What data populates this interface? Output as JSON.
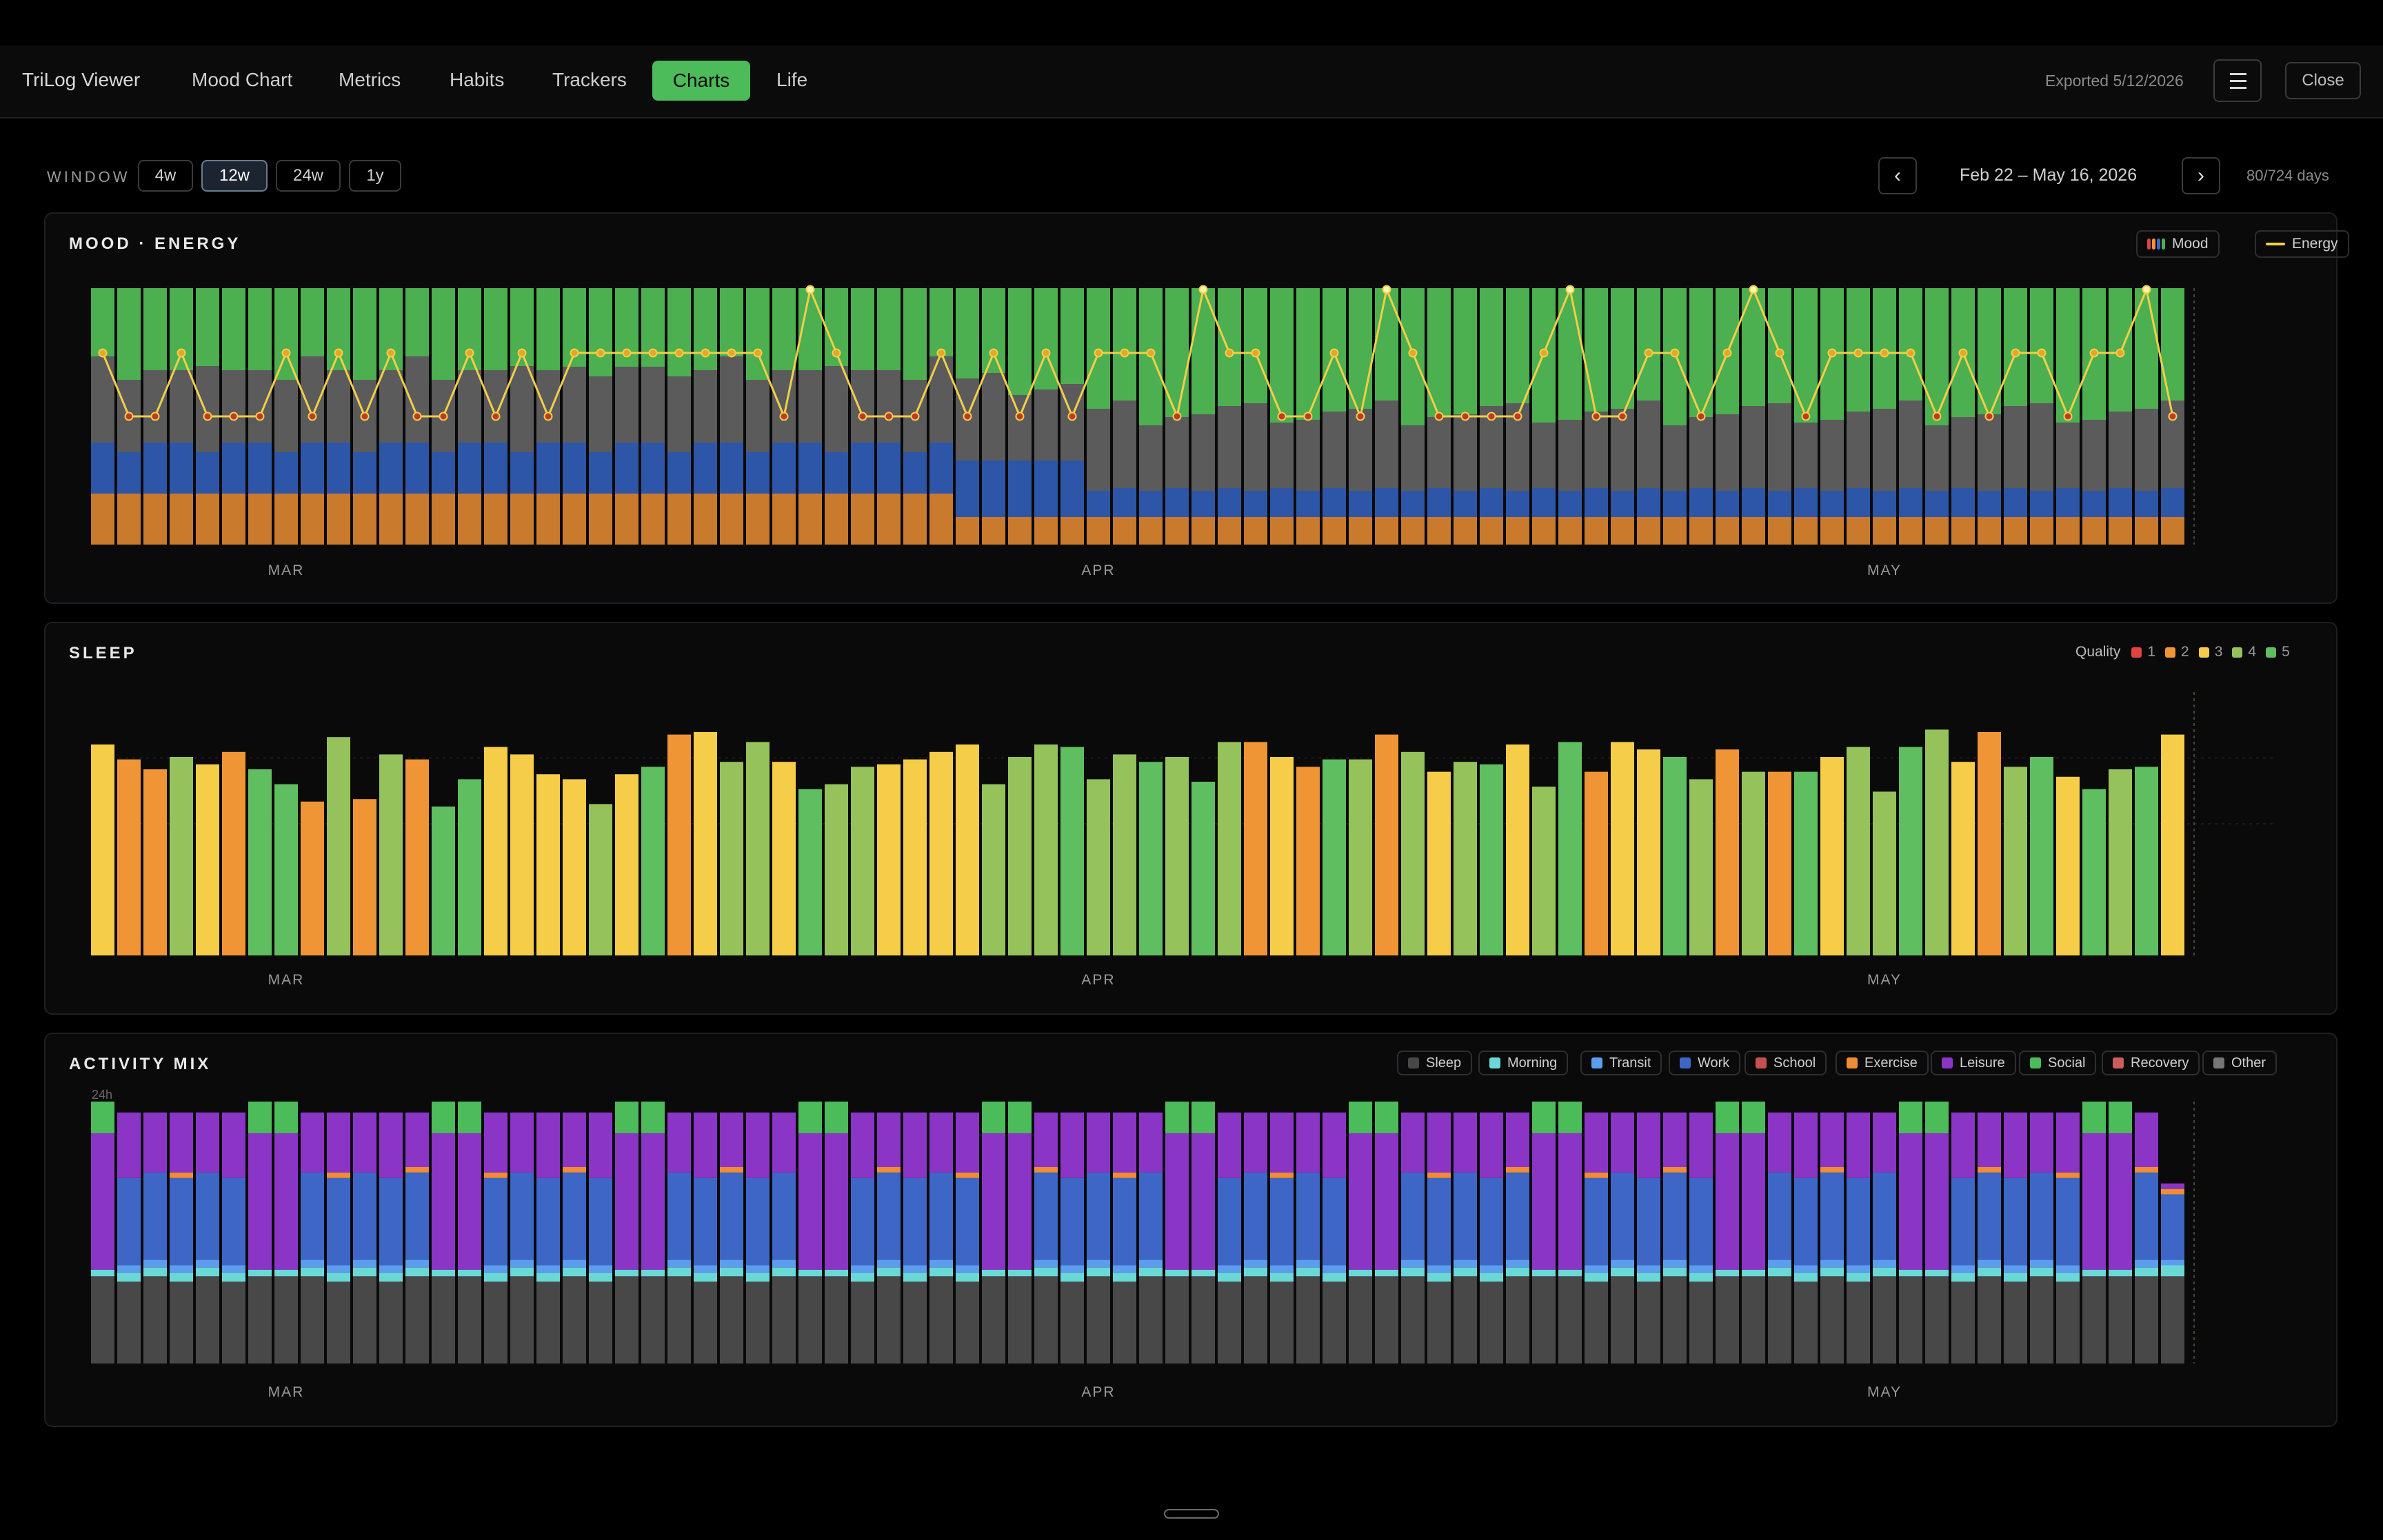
{
  "app": {
    "title": "TriLog Viewer",
    "tabs": [
      {
        "label": "Mood Chart",
        "active": false
      },
      {
        "label": "Metrics",
        "active": false
      },
      {
        "label": "Habits",
        "active": false
      },
      {
        "label": "Trackers",
        "active": false
      },
      {
        "label": "Charts",
        "active": true
      },
      {
        "label": "Life",
        "active": false
      }
    ],
    "exported": "Exported 5/12/2026",
    "close_label": "Close",
    "menu_icon": "hamburger-menu-icon"
  },
  "toolbar": {
    "window_label": "WINDOW",
    "windows": [
      "4w",
      "12w",
      "24w",
      "1y"
    ],
    "selected_window": "12w",
    "prev_label": "‹",
    "next_label": "›",
    "range": "Feb 22 – May 16, 2026",
    "days": "80/724 days"
  },
  "colors": {
    "accent": "#4cbb5a",
    "mood_high": "#4caf50",
    "mood_mid": "#5b5b5b",
    "mood_low": "#2e56a8",
    "mood_vlow": "#c97a2c",
    "energy": "#f2cf48",
    "q1": "#e0443e",
    "q2": "#ef9535",
    "q3": "#f6cd48",
    "q4": "#96c25b",
    "q5": "#5fbe5f"
  },
  "x_axis_labels": [
    "MAR",
    "APR",
    "MAY"
  ],
  "chart_data": [
    {
      "type": "bar",
      "title": "MOOD · ENERGY",
      "legend": [
        "Mood",
        "Energy"
      ],
      "days": 80,
      "mood_pattern": "stacked daily bars: green top / gray / blue / orange bottom",
      "energy": [
        3,
        2,
        2,
        3,
        2,
        2,
        2,
        3,
        2,
        3,
        2,
        3,
        2,
        2,
        3,
        2,
        3,
        2,
        3,
        3,
        3,
        3,
        3,
        3,
        3,
        3,
        2,
        5,
        3,
        2,
        2,
        2,
        3,
        2,
        3,
        2,
        3,
        2,
        3,
        3,
        3,
        2,
        5,
        3,
        3,
        2,
        2,
        3,
        2,
        5,
        3,
        2,
        2,
        2,
        2,
        3,
        5,
        2,
        2,
        3,
        3,
        2,
        3,
        5,
        3,
        2,
        3,
        3,
        3,
        3,
        2,
        3,
        2,
        3,
        3,
        2,
        3,
        3,
        5,
        2
      ]
    },
    {
      "type": "bar",
      "title": "SLEEP",
      "legend_title": "Quality",
      "legend": [
        "1",
        "2",
        "3",
        "4",
        "5"
      ],
      "days": 80,
      "values": [
        8.5,
        7.9,
        7.5,
        8.0,
        7.7,
        8.2,
        7.5,
        6.9,
        6.2,
        8.8,
        6.3,
        8.1,
        7.9,
        6.0,
        7.1,
        8.4,
        8.1,
        7.3,
        7.1,
        6.1,
        7.3,
        7.6,
        8.9,
        9.0,
        7.8,
        8.6,
        7.8,
        6.7,
        6.9,
        7.6,
        7.7,
        7.9,
        8.2,
        8.5,
        6.9,
        8.0,
        8.5,
        8.4,
        7.1,
        8.1,
        7.8,
        8.0,
        7.0,
        8.6,
        8.6,
        8.0,
        7.6,
        7.9,
        7.9,
        8.9,
        8.2,
        7.4,
        7.8,
        7.7,
        8.5,
        6.8,
        8.6,
        7.4,
        8.6,
        8.3,
        8.0,
        7.1,
        8.3,
        7.4,
        7.4,
        7.4,
        8.0,
        8.4,
        6.6,
        8.4,
        9.1,
        7.8,
        9.0,
        7.6,
        8.0,
        7.2,
        6.7,
        7.5,
        7.6,
        8.9
      ],
      "quality": [
        3,
        2,
        2,
        4,
        3,
        2,
        5,
        5,
        2,
        4,
        2,
        4,
        2,
        5,
        5,
        3,
        3,
        3,
        3,
        4,
        3,
        5,
        2,
        3,
        4,
        4,
        3,
        5,
        4,
        4,
        3,
        3,
        3,
        3,
        4,
        4,
        4,
        5,
        4,
        4,
        5,
        4,
        5,
        4,
        2,
        3,
        2,
        5,
        4,
        2,
        4,
        3,
        4,
        5,
        3,
        4,
        5,
        2,
        3,
        3,
        5,
        4,
        2,
        4,
        2,
        5,
        3,
        4,
        4,
        5,
        4,
        3,
        2,
        4,
        5,
        3,
        5,
        4,
        5,
        3
      ]
    },
    {
      "type": "bar",
      "title": "ACTIVITY MIX",
      "y_label": "24h",
      "legend": [
        "Sleep",
        "Morning",
        "Transit",
        "Work",
        "School",
        "Exercise",
        "Leisure",
        "Social",
        "Recovery",
        "Other"
      ],
      "days": 80,
      "series_colors": {
        "Sleep": "#484848",
        "Morning": "#6ad9d5",
        "Transit": "#5c9ded",
        "Work": "#3d66c6",
        "School": "#c65050",
        "Exercise": "#ef8c35",
        "Leisure": "#8b35c7",
        "Social": "#4cbb5a",
        "Recovery": "#cc5d5d",
        "Other": "#767676"
      },
      "typical_day_hours": {
        "weekday": {
          "Sleep": 8,
          "Morning": 1,
          "Transit": 0.5,
          "Work": 8,
          "Exercise": 0.5,
          "Leisure": 4,
          "Social": 2
        },
        "weekend": {
          "Sleep": 8,
          "Morning": 0.5,
          "Leisure": 13,
          "Social": 2.5
        }
      }
    }
  ],
  "panels": {
    "mood_legend_mood": "Mood",
    "mood_legend_energy": "Energy",
    "sleep_quality_label": "Quality"
  }
}
